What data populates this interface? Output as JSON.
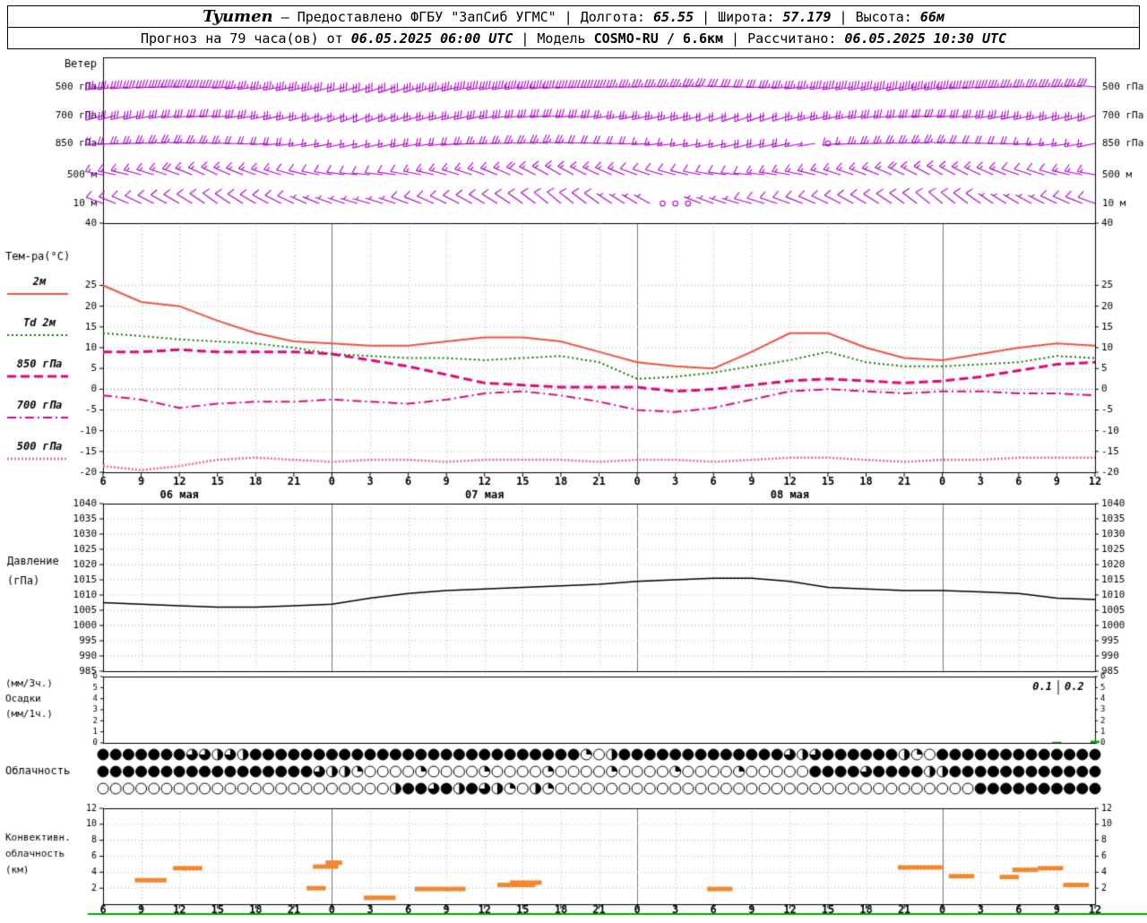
{
  "header": {
    "station": "Tyumen",
    "dash": "–",
    "provider": "Предоставлено ФГБУ \"ЗапСиб УГМС\"",
    "sep": "|",
    "fields": [
      {
        "label": "Долгота:",
        "value": "65.55"
      },
      {
        "label": "Широта:",
        "value": "57.179"
      },
      {
        "label": "Высота:",
        "value": "66м"
      }
    ]
  },
  "subheader": {
    "prefix": "Прогноз на 79 часа(ов) от",
    "init_time": "06.05.2025 06:00 UTC",
    "sep": "|",
    "model_label": "Модель",
    "model_value": "COSMO-RU",
    "model_res": "/ 6.6км",
    "calc_label": "Рассчитано:",
    "calc_time": "06.05.2025 10:30 UTC"
  },
  "labels": {
    "wind_title": "Ветер",
    "wind_levels": [
      "500 гПа",
      "700 гПа",
      "850 гПа",
      "500 м",
      "10 м"
    ],
    "temp_title": "Тем-ра(°C)",
    "pressure_title": [
      "Давление",
      "(гПа)"
    ],
    "precip_title": [
      "(мм/3ч.)",
      "Осадки",
      "(мм/1ч.)"
    ],
    "clouds_title": "Облачность",
    "conv_title": [
      "Конвективн.",
      "облачность",
      "(км)"
    ]
  },
  "chart_data": {
    "type": "meteogram",
    "palette": {
      "barb": "#a800c8",
      "pressure": "#000000",
      "precip": "#00b000",
      "convective": "#f08830",
      "frame": "#000000",
      "grid": "#b0b0b0",
      "bottom_line": "#00aa00"
    },
    "time": {
      "start_hour": 6,
      "step_hours": 3,
      "ticks": [
        "6",
        "9",
        "12",
        "15",
        "18",
        "21",
        "0",
        "3",
        "6",
        "9",
        "12",
        "15",
        "18",
        "21",
        "0",
        "3",
        "6",
        "9",
        "12",
        "15",
        "18",
        "21",
        "0",
        "3",
        "6",
        "9",
        "12"
      ],
      "dates": [
        {
          "label": "06 мая",
          "tick": 2
        },
        {
          "label": "07 мая",
          "tick": 10
        },
        {
          "label": "08 мая",
          "tick": 18
        }
      ]
    },
    "wind": {
      "speed_units": "m/s",
      "levels": [
        {
          "label": "500 гПа",
          "dir": [
            260,
            265,
            270,
            268,
            262,
            258,
            255,
            252,
            250,
            255,
            260,
            262,
            265,
            268,
            270,
            272,
            275,
            270,
            265,
            262,
            260,
            258,
            260,
            265,
            270,
            272,
            275
          ],
          "speed": [
            18,
            20,
            22,
            20,
            18,
            17,
            16,
            15,
            16,
            18,
            20,
            22,
            21,
            20,
            18,
            17,
            16,
            15,
            17,
            19,
            20,
            21,
            22,
            20,
            18,
            17,
            16
          ]
        },
        {
          "label": "700 гПа",
          "dir": [
            255,
            258,
            262,
            265,
            260,
            255,
            250,
            248,
            250,
            255,
            258,
            262,
            265,
            262,
            258,
            255,
            252,
            250,
            252,
            255,
            260,
            262,
            265,
            262,
            258,
            255,
            252
          ],
          "speed": [
            14,
            15,
            16,
            15,
            14,
            13,
            12,
            11,
            12,
            13,
            15,
            16,
            15,
            14,
            13,
            12,
            11,
            10,
            11,
            13,
            14,
            15,
            16,
            15,
            14,
            13,
            12
          ]
        },
        {
          "label": "850 гПа",
          "dir": [
            265,
            270,
            275,
            272,
            268,
            262,
            258,
            255,
            258,
            262,
            268,
            272,
            275,
            272,
            268,
            262,
            258,
            255,
            258,
            262,
            268,
            272,
            275,
            272,
            268,
            262,
            258
          ],
          "speed": [
            10,
            12,
            13,
            12,
            10,
            9,
            8,
            8,
            9,
            10,
            12,
            13,
            12,
            10,
            9,
            8,
            8,
            9,
            10,
            0,
            12,
            13,
            12,
            10,
            9,
            8,
            8
          ]
        },
        {
          "label": "500 м",
          "dir": [
            280,
            285,
            290,
            295,
            290,
            285,
            280,
            275,
            280,
            285,
            290,
            295,
            300,
            295,
            290,
            285,
            280,
            275,
            280,
            285,
            290,
            295,
            300,
            295,
            290,
            285,
            280
          ],
          "speed": [
            7,
            8,
            9,
            8,
            7,
            6,
            6,
            5,
            6,
            7,
            8,
            9,
            8,
            7,
            6,
            5,
            5,
            6,
            7,
            8,
            8,
            9,
            8,
            7,
            6,
            6,
            7
          ]
        },
        {
          "label": "10 м",
          "dir": [
            290,
            295,
            300,
            305,
            300,
            295,
            290,
            285,
            290,
            295,
            300,
            305,
            310,
            305,
            300,
            295,
            290,
            285,
            290,
            295,
            300,
            305,
            310,
            305,
            300,
            295,
            290
          ],
          "speed": [
            4,
            5,
            6,
            5,
            4,
            4,
            3,
            3,
            4,
            5,
            6,
            5,
            4,
            4,
            3,
            0,
            3,
            4,
            5,
            6,
            5,
            5,
            4,
            4,
            3,
            4,
            5
          ]
        }
      ]
    },
    "temperature": {
      "ylim": [
        -20,
        40
      ],
      "yticks": [
        40,
        25,
        20,
        15,
        10,
        5,
        0,
        -5,
        -10,
        -15,
        -20
      ],
      "series": [
        {
          "name": "2м",
          "color": "#ef5340",
          "style": "solid",
          "width": 2,
          "values": [
            25,
            21,
            20,
            16.5,
            13.5,
            11.5,
            11,
            10.5,
            10.5,
            11.5,
            12.5,
            12.5,
            11.5,
            9,
            6.5,
            5.5,
            5,
            9,
            13.5,
            13.5,
            10,
            7.5,
            7,
            8.5,
            10,
            11,
            10.5
          ]
        },
        {
          "name": "Td 2м",
          "color": "#008000",
          "style": "dotted",
          "width": 2,
          "values": [
            13.5,
            12.8,
            12,
            11.5,
            11,
            10,
            8.5,
            8,
            7.5,
            7.5,
            7,
            7.5,
            8,
            6.5,
            2.5,
            3,
            4,
            5.5,
            7,
            9,
            6.5,
            5.5,
            5.5,
            6,
            6.5,
            8,
            7.5
          ]
        },
        {
          "name": "850 гПа",
          "color": "#e0087c",
          "style": "dash",
          "width": 3,
          "values": [
            9,
            9,
            9.5,
            9,
            9,
            9,
            8.5,
            7,
            5.5,
            3.5,
            1.5,
            1,
            0.5,
            0.5,
            0.5,
            -0.5,
            0,
            1,
            2,
            2.5,
            2,
            1.5,
            2,
            3,
            4.5,
            6,
            6.5
          ]
        },
        {
          "name": "700 гПа",
          "color": "#e0087c",
          "style": "dashdot",
          "width": 2,
          "values": [
            -1.5,
            -2.5,
            -4.5,
            -3.5,
            -3,
            -3,
            -2.5,
            -3,
            -3.5,
            -2.5,
            -1,
            -0.5,
            -1.5,
            -3,
            -5,
            -5.5,
            -4.5,
            -2.5,
            -0.5,
            0,
            -0.5,
            -1,
            -0.5,
            -0.5,
            -1,
            -1,
            -1.5
          ]
        },
        {
          "name": "500 гПа",
          "color": "#f0609c",
          "style": "densedot",
          "width": 2.5,
          "values": [
            -18.5,
            -19.5,
            -18.5,
            -17,
            -16.5,
            -17,
            -17.5,
            -17,
            -17,
            -17.5,
            -17,
            -17,
            -17,
            -17.5,
            -17,
            -17,
            -17.5,
            -17,
            -16.5,
            -16.5,
            -17,
            -17.5,
            -17,
            -17,
            -16.5,
            -16.5,
            -16.5
          ]
        }
      ]
    },
    "pressure": {
      "ylim": [
        985,
        1040
      ],
      "yticks": [
        1040,
        1035,
        1030,
        1025,
        1020,
        1015,
        1010,
        1005,
        1000,
        995,
        990,
        985
      ],
      "values": [
        1007.5,
        1007,
        1006.5,
        1006,
        1006,
        1006.5,
        1007,
        1009,
        1010.5,
        1011.5,
        1012,
        1012.5,
        1013,
        1013.5,
        1014.5,
        1015,
        1015.5,
        1015.5,
        1014.5,
        1012.5,
        1012,
        1011.5,
        1011.5,
        1011,
        1010.5,
        1009,
        1008.5
      ]
    },
    "precipitation": {
      "ylim": [
        0,
        6
      ],
      "yticks": [
        6,
        5,
        4,
        3,
        2,
        1,
        0
      ],
      "values_3h": [
        0,
        0,
        0,
        0,
        0,
        0,
        0,
        0,
        0,
        0,
        0,
        0,
        0,
        0,
        0,
        0,
        0,
        0,
        0,
        0,
        0,
        0,
        0,
        0,
        0,
        0.1,
        0.2
      ],
      "annotations": [
        "0.1",
        "0.2"
      ]
    },
    "cloudiness": {
      "rows": [
        {
          "name": "row1",
          "fill": "4444444332324444444444444444444444444410244444444444443234444442104444444444444 44"
        },
        {
          "name": "row2",
          "fill": "444444444444444443221000010000100001000010000100001 0000444434444224444444444444"
        },
        {
          "name": "row3",
          "fill": "00000000000000000000000244342432102100000000000000000000000000000000 44444444444"
        }
      ]
    },
    "convective": {
      "ylim": [
        0,
        12
      ],
      "yticks": [
        12,
        10,
        8,
        6,
        4,
        2
      ],
      "units": "км",
      "segments": [
        {
          "s": 2.5,
          "e": 5,
          "km": 3
        },
        {
          "s": 5.5,
          "e": 7.8,
          "km": 4.5
        },
        {
          "s": 16,
          "e": 17.5,
          "km": 2
        },
        {
          "s": 16.5,
          "e": 18.5,
          "km": 4.7
        },
        {
          "s": 17.5,
          "e": 18.8,
          "km": 5.2
        },
        {
          "s": 20.5,
          "e": 23,
          "km": 0.8
        },
        {
          "s": 24.5,
          "e": 28.5,
          "km": 1.9
        },
        {
          "s": 31,
          "e": 34,
          "km": 2.4
        },
        {
          "s": 32,
          "e": 34.5,
          "km": 2.7
        },
        {
          "s": 47.5,
          "e": 49.5,
          "km": 1.9
        },
        {
          "s": 62.5,
          "e": 66,
          "km": 4.6
        },
        {
          "s": 66.5,
          "e": 68.5,
          "km": 3.5
        },
        {
          "s": 70.5,
          "e": 72,
          "km": 3.4
        },
        {
          "s": 71.5,
          "e": 73.5,
          "km": 4.3
        },
        {
          "s": 73.5,
          "e": 75.5,
          "km": 4.5
        },
        {
          "s": 75.5,
          "e": 77.5,
          "km": 2.4
        }
      ]
    }
  }
}
